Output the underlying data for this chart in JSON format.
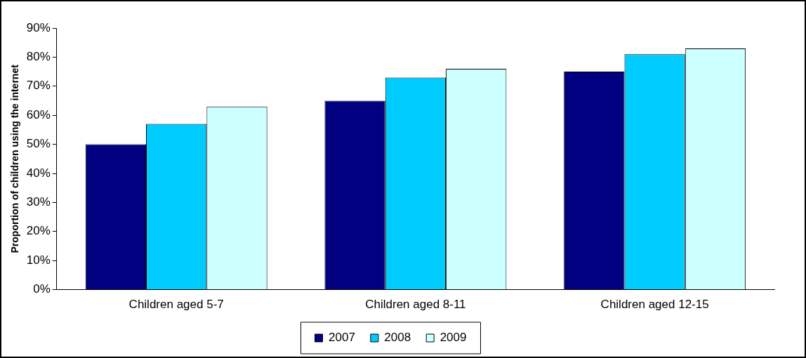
{
  "chart_data": {
    "type": "bar",
    "ylabel": "Proportion of children using the internet",
    "categories": [
      "Children aged 5-7",
      "Children aged 8-11",
      "Children aged 12-15"
    ],
    "series": [
      {
        "name": "2007",
        "color": "#000080",
        "values": [
          50,
          65,
          75
        ]
      },
      {
        "name": "2008",
        "color": "#00ccff",
        "values": [
          57,
          73,
          81
        ]
      },
      {
        "name": "2009",
        "color": "#ccffff",
        "values": [
          63,
          76,
          83
        ]
      }
    ],
    "ylim": [
      0,
      90
    ],
    "yticks": [
      {
        "value": 0,
        "label": "0%"
      },
      {
        "value": 10,
        "label": "10%"
      },
      {
        "value": 20,
        "label": "20%"
      },
      {
        "value": 30,
        "label": "30%"
      },
      {
        "value": 40,
        "label": "40%"
      },
      {
        "value": 50,
        "label": "50%"
      },
      {
        "value": 60,
        "label": "60%"
      },
      {
        "value": 70,
        "label": "70%"
      },
      {
        "value": 80,
        "label": "80%"
      },
      {
        "value": 90,
        "label": "90%"
      }
    ],
    "grid": false,
    "legend": "bottom"
  }
}
